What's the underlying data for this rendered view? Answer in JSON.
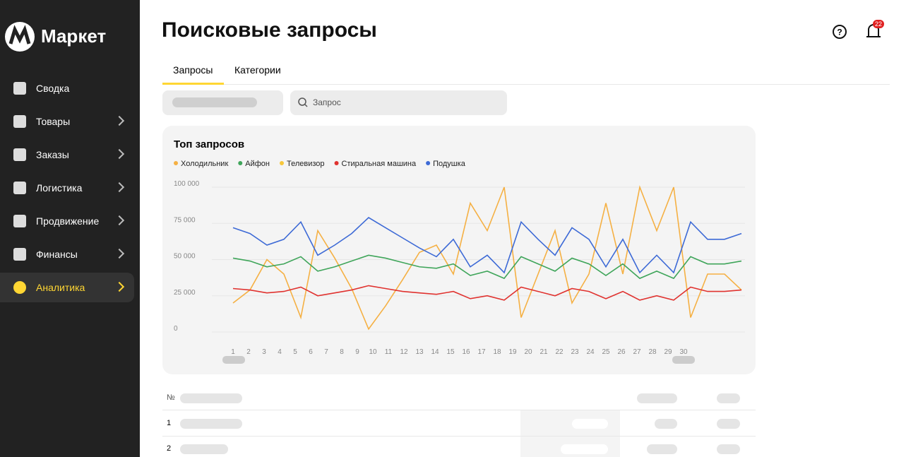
{
  "sidebar": {
    "logo": "Маркет",
    "items": [
      "Сводка",
      "Товары",
      "Заказы",
      "Логистика",
      "Продвижение",
      "Финансы",
      "Аналитика"
    ]
  },
  "header": {
    "title": "Поисковые запросы",
    "notifications": "22"
  },
  "tabs": [
    "Запросы",
    "Категории"
  ],
  "search": {
    "placeholder": "Запрос"
  },
  "chart_data": {
    "type": "line",
    "title": "Топ запросов",
    "categories": [
      "1",
      "2",
      "3",
      "4",
      "5",
      "6",
      "7",
      "8",
      "9",
      "10",
      "11",
      "12",
      "13",
      "14",
      "15",
      "16",
      "17",
      "18",
      "19",
      "20",
      "21",
      "22",
      "23",
      "24",
      "25",
      "26",
      "27",
      "28",
      "29",
      "30",
      null
    ],
    "series": [
      {
        "name": "Холодильник",
        "color": "#f5b043",
        "values": [
          20000,
          29000,
          50000,
          40000,
          10000,
          70000,
          51000,
          30000,
          2000,
          18000,
          36000,
          55000,
          60000,
          40000,
          89000,
          70000,
          100000,
          10000,
          40000,
          70000,
          20000,
          40000,
          89000,
          40000,
          100000,
          70000,
          100000,
          10000,
          40000,
          40000,
          29000
        ]
      },
      {
        "name": "Айфон",
        "color": "#3fa55a",
        "values": [
          51000,
          49000,
          45000,
          47000,
          52000,
          42000,
          45000,
          49000,
          53000,
          51000,
          48000,
          45000,
          44000,
          47000,
          39000,
          42000,
          37000,
          52000,
          47000,
          42000,
          51000,
          47000,
          39000,
          47000,
          37000,
          42000,
          37000,
          52000,
          47000,
          47000,
          49000
        ]
      },
      {
        "name": "Телевизор",
        "color": "#f7c73a",
        "values": [
          null,
          null,
          null,
          null,
          null,
          null,
          null,
          null,
          null,
          null,
          null,
          null,
          null,
          null,
          null,
          null,
          null,
          null,
          null,
          null,
          null,
          null,
          null,
          null,
          null,
          null,
          null,
          null,
          null,
          null,
          null
        ]
      },
      {
        "name": "Стиральная машина",
        "color": "#e0322f",
        "values": [
          30000,
          29000,
          27000,
          28000,
          31000,
          25000,
          27000,
          29000,
          32000,
          30000,
          28000,
          27000,
          26000,
          28000,
          23000,
          25000,
          22000,
          31000,
          28000,
          25000,
          30000,
          28000,
          23000,
          28000,
          22000,
          25000,
          22000,
          31000,
          28000,
          28000,
          29000
        ]
      },
      {
        "name": "Подушка",
        "color": "#3d6ad6",
        "values": [
          72000,
          68000,
          60000,
          64000,
          76000,
          53000,
          60000,
          68000,
          79000,
          72000,
          65000,
          58000,
          52000,
          64000,
          45000,
          53000,
          41000,
          76000,
          64000,
          53000,
          72000,
          64000,
          45000,
          64000,
          41000,
          53000,
          41000,
          76000,
          64000,
          64000,
          68000
        ]
      }
    ],
    "ylim": [
      0,
      100000
    ],
    "yticks": [
      {
        "value": 0,
        "label": "0"
      },
      {
        "value": 25000,
        "label": "25 000"
      },
      {
        "value": 50000,
        "label": "50 000"
      },
      {
        "value": 75000,
        "label": "75 000"
      },
      {
        "value": 100000,
        "label": "100 000"
      }
    ],
    "grid": true
  },
  "table": {
    "header": "№",
    "rows": [
      "1",
      "2"
    ]
  }
}
